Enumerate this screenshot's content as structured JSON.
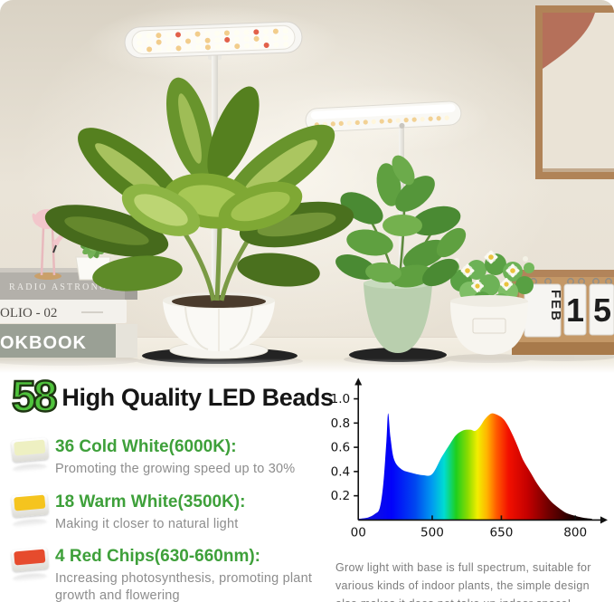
{
  "photo": {
    "books": [
      {
        "title": "RADIO ASTRONOMER"
      },
      {
        "title": "OLIO - 02"
      },
      {
        "title": "OKBOOK"
      }
    ],
    "calendar": {
      "month": "FEB",
      "digit_tens": "1",
      "digit_ones": "5"
    }
  },
  "info": {
    "headline": {
      "number": "58",
      "text": "High Quality LED Beads"
    },
    "features": [
      {
        "title": "36 Cold White(6000K):",
        "desc": "Promoting the growing speed up to 30%",
        "chip_color": "#eef0c2"
      },
      {
        "title": "18 Warm White(3500K):",
        "desc": "Making it closer to natural light",
        "chip_color": "#f5c41e"
      },
      {
        "title": "4 Red Chips(630-660nm):",
        "desc": "Increasing photosynthesis, promoting plant growth and flowering",
        "chip_color": "#e64b2d"
      }
    ],
    "caption": "Grow light with base is full spectrum, suitable for various kinds of indoor plants, the simple design also makes it does not take up indoor space!"
  },
  "chart_data": {
    "type": "area",
    "title": "",
    "xlabel": "",
    "ylabel": "",
    "x_ticks": [
      {
        "label": "00",
        "f": 0.0
      },
      {
        "label": "500",
        "f": 0.31
      },
      {
        "label": "650",
        "f": 0.6
      },
      {
        "label": "800",
        "f": 0.91
      }
    ],
    "y_ticks": [
      0.2,
      0.4,
      0.6,
      0.8,
      1.0
    ],
    "ylim": [
      0,
      1.05
    ],
    "grid": false,
    "points": [
      [
        0.0,
        0.01
      ],
      [
        0.04,
        0.02
      ],
      [
        0.07,
        0.05
      ],
      [
        0.09,
        0.1
      ],
      [
        0.105,
        0.3
      ],
      [
        0.118,
        0.65
      ],
      [
        0.125,
        0.88
      ],
      [
        0.135,
        0.68
      ],
      [
        0.15,
        0.5
      ],
      [
        0.18,
        0.42
      ],
      [
        0.22,
        0.39
      ],
      [
        0.27,
        0.37
      ],
      [
        0.31,
        0.38
      ],
      [
        0.35,
        0.52
      ],
      [
        0.385,
        0.63
      ],
      [
        0.41,
        0.7
      ],
      [
        0.44,
        0.74
      ],
      [
        0.47,
        0.745
      ],
      [
        0.49,
        0.735
      ],
      [
        0.51,
        0.77
      ],
      [
        0.53,
        0.83
      ],
      [
        0.55,
        0.87
      ],
      [
        0.565,
        0.88
      ],
      [
        0.59,
        0.86
      ],
      [
        0.61,
        0.83
      ],
      [
        0.63,
        0.77
      ],
      [
        0.65,
        0.69
      ],
      [
        0.67,
        0.6
      ],
      [
        0.69,
        0.5
      ],
      [
        0.72,
        0.4
      ],
      [
        0.75,
        0.3
      ],
      [
        0.78,
        0.22
      ],
      [
        0.81,
        0.15
      ],
      [
        0.84,
        0.1
      ],
      [
        0.87,
        0.06
      ],
      [
        0.9,
        0.04
      ],
      [
        0.94,
        0.02
      ],
      [
        0.98,
        0.01
      ]
    ],
    "gradient": [
      [
        0.0,
        "#1616d8"
      ],
      [
        0.14,
        "#0202fa"
      ],
      [
        0.24,
        "#0048f0"
      ],
      [
        0.31,
        "#009cf0"
      ],
      [
        0.36,
        "#00dcd2"
      ],
      [
        0.41,
        "#1ecf1e"
      ],
      [
        0.46,
        "#8edc00"
      ],
      [
        0.5,
        "#f2ee00"
      ],
      [
        0.54,
        "#ffb400"
      ],
      [
        0.58,
        "#ff5a00"
      ],
      [
        0.63,
        "#f21000"
      ],
      [
        0.71,
        "#c40000"
      ],
      [
        0.8,
        "#6e0000"
      ],
      [
        0.9,
        "#1e0000"
      ],
      [
        1.0,
        "#000000"
      ]
    ]
  },
  "colors": {
    "headline_green": "#4fc33c",
    "feature_green": "#3ea03a",
    "desc_gray": "#8d8d8d",
    "mint_pot": "#b9cfae",
    "wall": "#e7e0d3"
  }
}
